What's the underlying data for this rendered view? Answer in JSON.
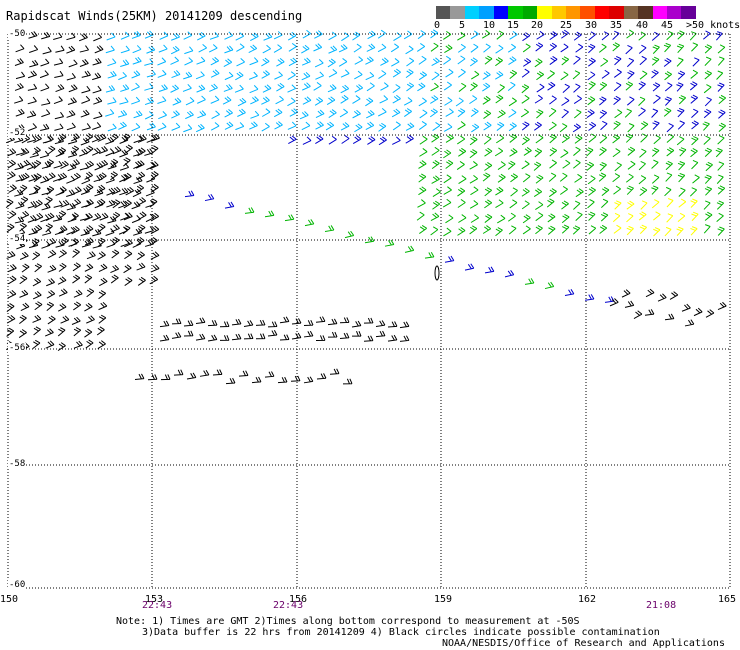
{
  "title": "Rapidscat Winds(25KM) 20141209 descending",
  "colorbar": {
    "colors": [
      "#555555",
      "#999999",
      "#00d0ff",
      "#00a0ff",
      "#0000ff",
      "#00c800",
      "#00aa00",
      "#ffff00",
      "#ffc800",
      "#ff9600",
      "#ff5000",
      "#ff0000",
      "#dd0000",
      "#886644",
      "#553322",
      "#ff00ff",
      "#aa00cc",
      "#660099"
    ],
    "labels": [
      "0",
      "5",
      "10",
      "15",
      "20",
      "25",
      "30",
      "35",
      "40",
      "45",
      ">50 knots"
    ]
  },
  "lat_labels": [
    "-50",
    "-52",
    "-54",
    "-56",
    "-58",
    "-60"
  ],
  "lon_labels": [
    "150",
    "153",
    "156",
    "159",
    "162",
    "165"
  ],
  "time_labels": [
    "22:43",
    "22:43",
    "21:08"
  ],
  "notes": {
    "line1": "Note: 1) Times are GMT 2)Times along bottom correspond to measurement at -50S",
    "line2": "3)Data buffer is 22 hrs from 20141209 4) Black circles indicate possible contamination",
    "line3": "NOAA/NESDIS/Office of Research and Applications"
  },
  "map": {
    "lon_range": [
      150,
      165
    ],
    "lat_range": [
      -60,
      -50
    ],
    "wind_colors": {
      "black": "#000000",
      "cyan": "#00b4ff",
      "blue": "#0000cc",
      "green": "#00b400",
      "yellow": "#ffff00"
    }
  }
}
